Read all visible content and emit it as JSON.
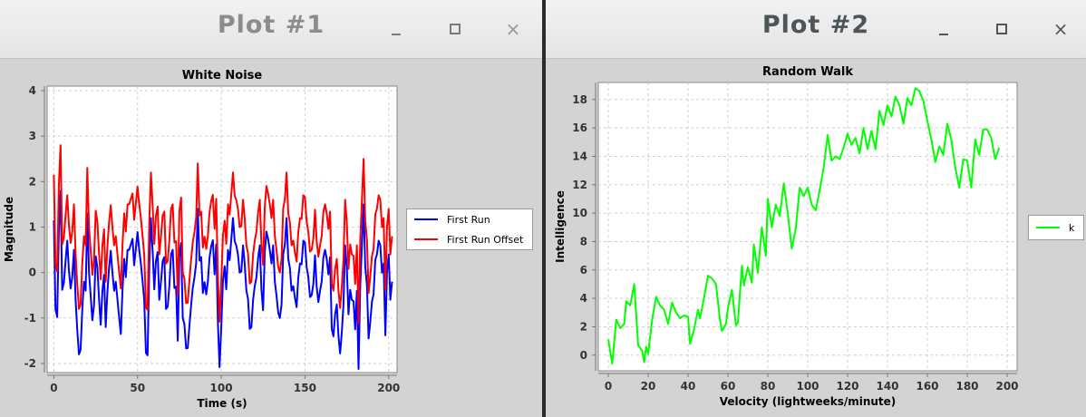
{
  "windows": [
    {
      "title": "Plot #1",
      "controls": {
        "minimize": "minimize",
        "maximize": "maximize",
        "close": "×"
      }
    },
    {
      "title": "Plot #2",
      "controls": {
        "minimize": "minimize",
        "maximize": "maximize",
        "close": "×"
      }
    }
  ],
  "colors": {
    "first_run": "#0000ff",
    "first_run_offset": "#ff0000",
    "k": "#00ff00"
  },
  "chart_data": [
    {
      "type": "line",
      "title": "White Noise",
      "xlabel": "Time (s)",
      "ylabel": "Magnitude",
      "xlim": [
        -4,
        205
      ],
      "ylim": [
        -2.2,
        4.1
      ],
      "xticks": [
        0,
        50,
        100,
        150,
        200
      ],
      "yticks": [
        -2,
        -1,
        0,
        1,
        2,
        3,
        4
      ],
      "grid": true,
      "legend_position": "right",
      "series": [
        {
          "name": "First Run",
          "color": "#0000ff",
          "x_start": 0,
          "x_step": 1,
          "values": [
            1.15,
            -0.8,
            -0.98,
            0.9,
            1.8,
            -0.38,
            -0.22,
            0.25,
            0.7,
            0.05,
            -0.35,
            -0.1,
            0.5,
            -0.6,
            -1.25,
            -1.8,
            -1.7,
            -0.8,
            -0.2,
            -0.4,
            1.3,
            0.0,
            -0.5,
            -1.05,
            -0.72,
            0.36,
            0.12,
            -0.6,
            -1.15,
            -0.42,
            -0.05,
            -1.2,
            -0.42,
            0.1,
            0.48,
            0.0,
            -0.4,
            -0.2,
            -0.6,
            -0.98,
            -1.35,
            -0.4,
            0.3,
            -0.1,
            0.5,
            0.5,
            0.62,
            0.74,
            0.16,
            0.53,
            0.89,
            0.5,
            0.2,
            -0.2,
            -0.61,
            -1.77,
            -1.82,
            0.13,
            1.2,
            0.46,
            -0.37,
            0.25,
            0.45,
            -0.6,
            -0.2,
            0.25,
            0.34,
            -0.8,
            -0.75,
            -0.3,
            0.4,
            0.5,
            -0.34,
            -0.31,
            -1.5,
            0.36,
            0.65,
            -1.0,
            -1.13,
            -1.67,
            -1.66,
            -1.16,
            -0.72,
            -0.33,
            -0.11,
            0.21,
            1.4,
            0.26,
            0.34,
            -0.45,
            -0.21,
            -0.48,
            -0.2,
            0.32,
            0.58,
            0.71,
            -0.04,
            0.62,
            -1.12,
            -2.08,
            -1.2,
            -0.2,
            0.14,
            -0.37,
            0.5,
            0.27,
            0.74,
            1.2,
            0.69,
            0.59,
            0.4,
            0.0,
            0.02,
            0.6,
            0.2,
            -0.4,
            -0.58,
            -1.24,
            -1.2,
            -0.6,
            -0.3,
            -0.1,
            0.32,
            0.6,
            -0.38,
            -0.83,
            0.45,
            0.9,
            0.73,
            0.5,
            0.2,
            0.6,
            -0.2,
            -0.5,
            -0.88,
            -1.0,
            -0.7,
            0.4,
            0.63,
            1.2,
            0.3,
            0.1,
            -0.4,
            -0.3,
            -0.55,
            -0.76,
            -0.12,
            0.2,
            0.18,
            0.7,
            0.66,
            0.12,
            -0.1,
            -0.54,
            -0.5,
            -0.25,
            0.38,
            -0.3,
            -0.65,
            -0.41,
            -0.19,
            0.33,
            0.5,
            0.3,
            -0.04,
            0.34,
            -1.24,
            -1.4,
            -0.92,
            -0.7,
            -1.4,
            -1.78,
            -1.3,
            -0.71,
            0.6,
            0.1,
            -0.92,
            -0.38,
            -0.6,
            -0.63,
            -1.25,
            -0.4,
            -2.12,
            -0.3,
            0.57,
            1.5,
            0.13,
            -0.28,
            -1.45,
            -1.1,
            -0.64,
            -0.48,
            0.28,
            0.4,
            0.7,
            0.6,
            0.0,
            0.2,
            -1.38,
            0.0,
            0.4,
            -0.6,
            -0.2
          ]
        },
        {
          "name": "First Run Offset",
          "color": "#ff0000",
          "x_start": 0,
          "x_step": 1,
          "values": [
            2.15,
            0.2,
            0.02,
            1.9,
            2.8,
            0.62,
            0.78,
            1.25,
            1.7,
            1.05,
            0.65,
            0.9,
            1.5,
            0.4,
            -0.25,
            -0.8,
            -0.7,
            0.2,
            0.8,
            0.6,
            2.3,
            1.0,
            0.5,
            -0.05,
            0.28,
            1.36,
            1.12,
            0.4,
            -0.15,
            0.58,
            0.95,
            -0.2,
            0.58,
            1.1,
            1.48,
            1.0,
            0.6,
            0.8,
            0.4,
            0.02,
            -0.35,
            0.6,
            1.3,
            0.9,
            1.5,
            1.5,
            1.62,
            1.74,
            1.16,
            1.53,
            1.89,
            1.5,
            1.2,
            0.8,
            0.39,
            -0.77,
            -0.82,
            1.13,
            2.2,
            1.46,
            0.63,
            1.25,
            1.45,
            0.4,
            0.8,
            1.25,
            1.34,
            0.2,
            0.25,
            0.7,
            1.4,
            1.5,
            0.66,
            0.69,
            -0.5,
            1.36,
            1.65,
            0.0,
            -0.13,
            -0.67,
            -0.66,
            -0.16,
            0.28,
            0.67,
            0.89,
            1.21,
            2.4,
            1.26,
            1.34,
            0.55,
            0.79,
            0.52,
            0.8,
            1.32,
            1.58,
            1.71,
            0.96,
            1.62,
            -0.12,
            -1.08,
            -0.2,
            0.8,
            1.14,
            0.63,
            1.5,
            1.27,
            1.74,
            2.2,
            1.69,
            1.59,
            1.4,
            1.0,
            1.02,
            1.6,
            1.2,
            0.6,
            0.42,
            -0.24,
            -0.2,
            0.4,
            0.7,
            0.9,
            1.32,
            1.6,
            0.62,
            0.17,
            1.45,
            1.9,
            1.73,
            1.5,
            1.2,
            1.6,
            0.8,
            0.5,
            0.12,
            0.0,
            0.3,
            1.4,
            1.63,
            2.2,
            1.3,
            1.1,
            0.6,
            0.7,
            0.45,
            0.24,
            0.88,
            1.2,
            1.18,
            1.7,
            1.66,
            1.12,
            0.9,
            0.46,
            0.5,
            0.75,
            1.38,
            0.7,
            0.35,
            0.59,
            0.81,
            1.33,
            1.5,
            1.3,
            0.96,
            1.34,
            -0.24,
            -0.4,
            0.08,
            0.3,
            -0.4,
            -0.78,
            -0.3,
            0.29,
            1.6,
            1.1,
            0.08,
            0.62,
            0.4,
            0.37,
            -0.25,
            0.6,
            -1.12,
            0.7,
            1.57,
            2.5,
            1.13,
            0.72,
            -0.45,
            -0.1,
            0.36,
            0.52,
            1.28,
            1.4,
            1.7,
            1.6,
            1.0,
            1.2,
            -0.38,
            1.0,
            1.4,
            0.4,
            0.8
          ]
        }
      ]
    },
    {
      "type": "line",
      "title": "Random Walk",
      "xlabel": "Velocity (lightweeks/minute)",
      "ylabel": "Intelligence",
      "xlim": [
        -5,
        205
      ],
      "ylim": [
        -1.1,
        19.2
      ],
      "xticks": [
        0,
        20,
        40,
        60,
        80,
        100,
        120,
        140,
        160,
        180,
        200
      ],
      "yticks": [
        0,
        2,
        4,
        6,
        8,
        10,
        12,
        14,
        16,
        18
      ],
      "grid": true,
      "legend_position": "right",
      "series": [
        {
          "name": "k",
          "color": "#00ff00",
          "points": [
            [
              0,
              1.1
            ],
            [
              2,
              -0.6
            ],
            [
              4,
              2.5
            ],
            [
              6,
              1.9
            ],
            [
              8,
              2.2
            ],
            [
              9,
              3.8
            ],
            [
              11,
              3.5
            ],
            [
              13,
              5.0
            ],
            [
              15,
              0.7
            ],
            [
              17,
              0.3
            ],
            [
              18,
              -0.5
            ],
            [
              19,
              0.6
            ],
            [
              20,
              0.1
            ],
            [
              22,
              2.5
            ],
            [
              24,
              4.1
            ],
            [
              26,
              3.5
            ],
            [
              28,
              3.2
            ],
            [
              30,
              2.2
            ],
            [
              32,
              3.7
            ],
            [
              34,
              3.0
            ],
            [
              36,
              2.6
            ],
            [
              38,
              2.8
            ],
            [
              40,
              2.7
            ],
            [
              41,
              0.8
            ],
            [
              43,
              1.8
            ],
            [
              45,
              3.2
            ],
            [
              46,
              2.6
            ],
            [
              48,
              4.0
            ],
            [
              50,
              5.6
            ],
            [
              52,
              5.4
            ],
            [
              54,
              5.0
            ],
            [
              56,
              2.5
            ],
            [
              57,
              1.7
            ],
            [
              59,
              2.2
            ],
            [
              60,
              3.3
            ],
            [
              62,
              4.6
            ],
            [
              64,
              2.1
            ],
            [
              65,
              2.3
            ],
            [
              67,
              6.3
            ],
            [
              68,
              4.9
            ],
            [
              70,
              6.2
            ],
            [
              72,
              5.1
            ],
            [
              73,
              7.8
            ],
            [
              75,
              5.8
            ],
            [
              77,
              9.0
            ],
            [
              79,
              7.0
            ],
            [
              80,
              11.0
            ],
            [
              82,
              9.0
            ],
            [
              84,
              10.6
            ],
            [
              86,
              9.8
            ],
            [
              88,
              12.1
            ],
            [
              90,
              10.0
            ],
            [
              92,
              7.5
            ],
            [
              94,
              8.9
            ],
            [
              96,
              11.8
            ],
            [
              98,
              11.2
            ],
            [
              100,
              11.8
            ],
            [
              102,
              10.6
            ],
            [
              104,
              10.2
            ],
            [
              106,
              11.6
            ],
            [
              108,
              13.2
            ],
            [
              110,
              15.5
            ],
            [
              112,
              13.7
            ],
            [
              114,
              14.0
            ],
            [
              116,
              13.8
            ],
            [
              118,
              14.6
            ],
            [
              120,
              15.6
            ],
            [
              122,
              14.8
            ],
            [
              124,
              15.3
            ],
            [
              126,
              14.2
            ],
            [
              128,
              16.0
            ],
            [
              130,
              14.5
            ],
            [
              132,
              15.8
            ],
            [
              134,
              14.5
            ],
            [
              136,
              17.2
            ],
            [
              138,
              16.2
            ],
            [
              140,
              17.6
            ],
            [
              142,
              16.8
            ],
            [
              144,
              18.2
            ],
            [
              146,
              17.6
            ],
            [
              148,
              16.3
            ],
            [
              150,
              18.1
            ],
            [
              152,
              17.6
            ],
            [
              154,
              18.8
            ],
            [
              156,
              18.6
            ],
            [
              158,
              17.9
            ],
            [
              160,
              16.5
            ],
            [
              162,
              15.2
            ],
            [
              164,
              13.6
            ],
            [
              166,
              14.7
            ],
            [
              168,
              14.1
            ],
            [
              170,
              16.3
            ],
            [
              172,
              15.2
            ],
            [
              174,
              13.2
            ],
            [
              176,
              11.8
            ],
            [
              178,
              13.8
            ],
            [
              180,
              13.7
            ],
            [
              182,
              11.8
            ],
            [
              184,
              15.2
            ],
            [
              186,
              14.1
            ],
            [
              188,
              15.9
            ],
            [
              190,
              15.9
            ],
            [
              192,
              15.3
            ],
            [
              194,
              13.8
            ],
            [
              196,
              14.6
            ]
          ]
        }
      ]
    }
  ]
}
